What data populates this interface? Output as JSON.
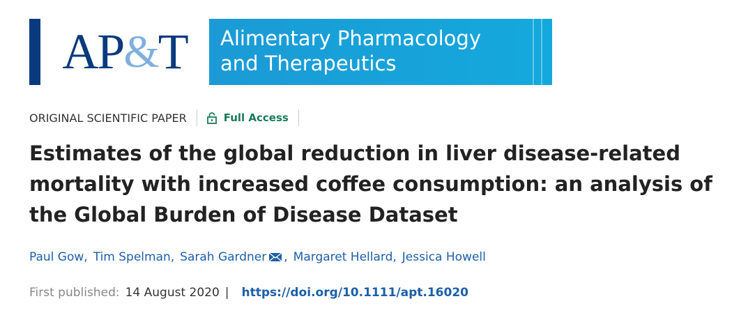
{
  "banner": {
    "logo": [
      "AP",
      "&",
      "T"
    ],
    "journal": [
      "Alimentary Pharmacology",
      "and Therapeutics"
    ]
  },
  "article": {
    "type": "ORIGINAL SCIENTIFIC PAPER",
    "access": "Full Access",
    "title": "Estimates of the global reduction in liver disease-related mortality with increased coffee consumption: an analysis of the Global Burden of Disease Dataset",
    "authors": [
      "Paul Gow,",
      "Tim Spelman,",
      "Sarah Gardner",
      ",",
      "Margaret Hellard,",
      "Jessica Howell"
    ],
    "published_label": "First published:",
    "published_date": "14 August 2020",
    "separator": "|",
    "doi": "https://doi.org/10.1111/apt.16020"
  }
}
